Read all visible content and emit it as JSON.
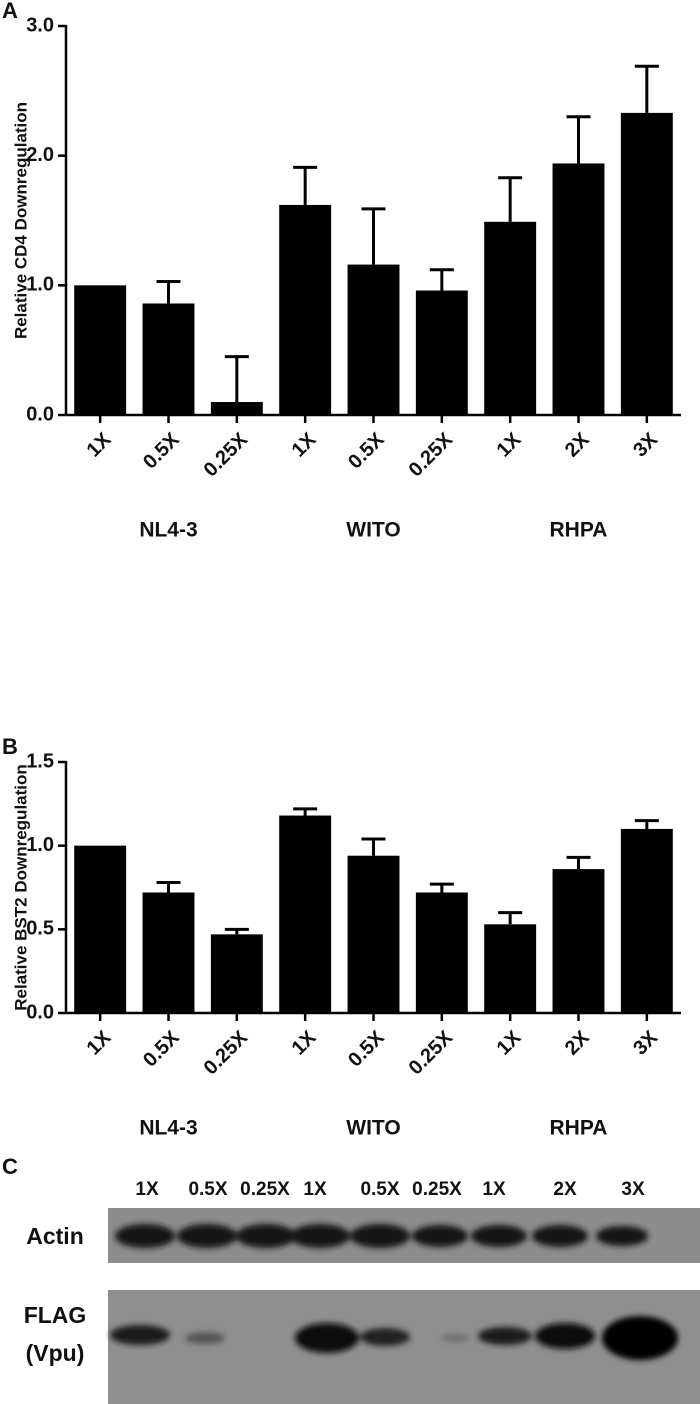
{
  "chart_data": [
    {
      "type": "bar",
      "panel": "A",
      "y_label": "Relative CD4 Downregulation",
      "categories": [
        "1X",
        "0.5X",
        "0.25X",
        "1X",
        "0.5X",
        "0.25X",
        "1X",
        "2X",
        "3X"
      ],
      "groups": [
        "NL4-3",
        "WITO",
        "RHPA"
      ],
      "values": [
        1.0,
        0.86,
        0.1,
        1.62,
        1.16,
        0.96,
        1.49,
        1.94,
        2.33
      ],
      "errors": [
        0,
        0.17,
        0.35,
        0.29,
        0.43,
        0.16,
        0.34,
        0.36,
        0.36
      ],
      "color": "#000000",
      "ylim": [
        0,
        3.0
      ],
      "yticks": [
        {
          "value": 0,
          "label": "0.0"
        },
        {
          "value": 1,
          "label": "1.0"
        },
        {
          "value": 2,
          "label": "2.0"
        },
        {
          "value": 3,
          "label": "3.0"
        }
      ]
    },
    {
      "type": "bar",
      "panel": "B",
      "y_label": "Relative BST2 Downregulation",
      "categories": [
        "1X",
        "0.5X",
        "0.25X",
        "1X",
        "0.5X",
        "0.25X",
        "1X",
        "2X",
        "3X"
      ],
      "groups": [
        "NL4-3",
        "WITO",
        "RHPA"
      ],
      "values": [
        1.0,
        0.72,
        0.47,
        1.18,
        0.94,
        0.72,
        0.53,
        0.86,
        1.1
      ],
      "errors": [
        0,
        0.06,
        0.03,
        0.04,
        0.1,
        0.05,
        0.07,
        0.07,
        0.05
      ],
      "color": "#000000",
      "ylim": [
        0,
        1.5
      ],
      "yticks": [
        {
          "value": 0,
          "label": "0.0"
        },
        {
          "value": 0.5,
          "label": "0.5"
        },
        {
          "value": 1,
          "label": "1.0"
        },
        {
          "value": 1.5,
          "label": "1.5"
        }
      ]
    }
  ],
  "blot": {
    "panel": "C",
    "lanes": [
      "1X",
      "0.5X",
      "0.25X",
      "1X",
      "0.5X",
      "0.25X",
      "1X",
      "2X",
      "3X"
    ],
    "rows": [
      [
        "Actin"
      ],
      [
        "FLAG",
        "(Vpu)"
      ]
    ]
  }
}
